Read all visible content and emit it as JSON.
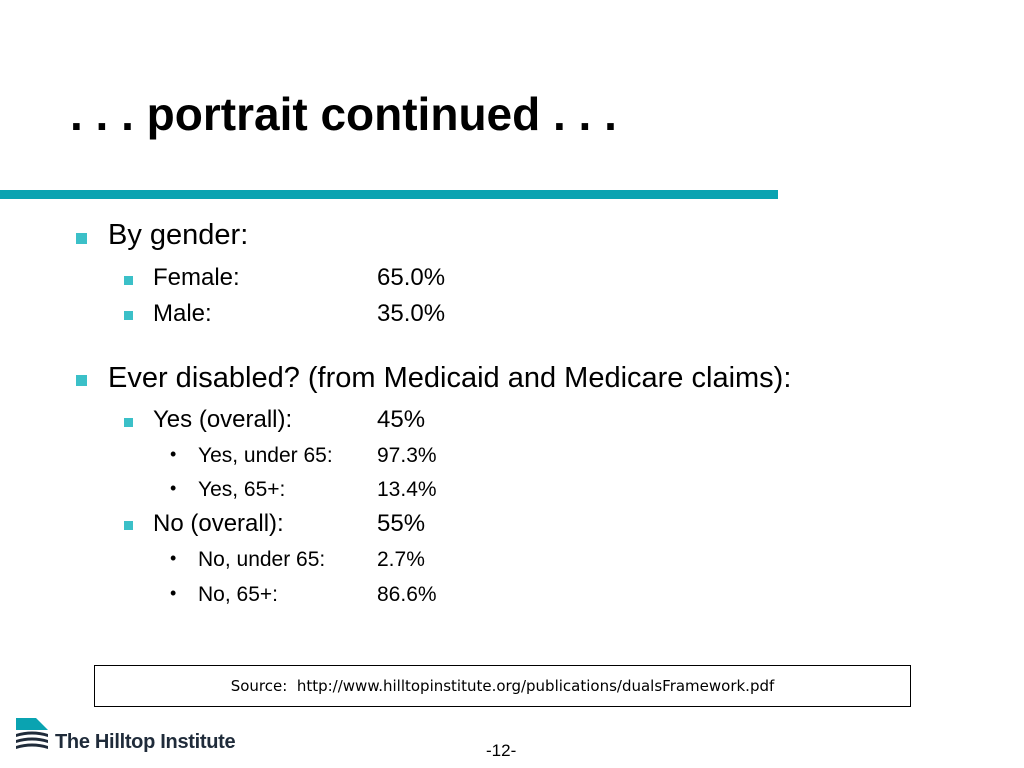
{
  "slide": {
    "title": ". . . portrait continued . . .",
    "accent_color": "#0aa3b1",
    "bullet_color": "#3bc0c8"
  },
  "gender": {
    "heading": "By gender:",
    "female_label": "Female:",
    "female_value": "65.0%",
    "male_label": "Male:",
    "male_value": "35.0%"
  },
  "disabled": {
    "heading": "Ever disabled? (from Medicaid and Medicare claims):",
    "yes_label": "Yes (overall):",
    "yes_value": "45%",
    "yes_under65_label": "Yes, under 65:",
    "yes_under65_value": "97.3%",
    "yes_65plus_label": "Yes, 65+:",
    "yes_65plus_value": "13.4%",
    "no_label": "No (overall):",
    "no_value": "55%",
    "no_under65_label": "No, under 65:",
    "no_under65_value": "2.7%",
    "no_65plus_label": "No, 65+:",
    "no_65plus_value": "86.6%"
  },
  "source": {
    "text": "Source:  http://www.hilltopinstitute.org/publications/dualsFramework.pdf"
  },
  "footer": {
    "logo_text": "The Hilltop Institute",
    "logo_icon": "hilltop-logo-icon",
    "page_number": "-12-"
  }
}
